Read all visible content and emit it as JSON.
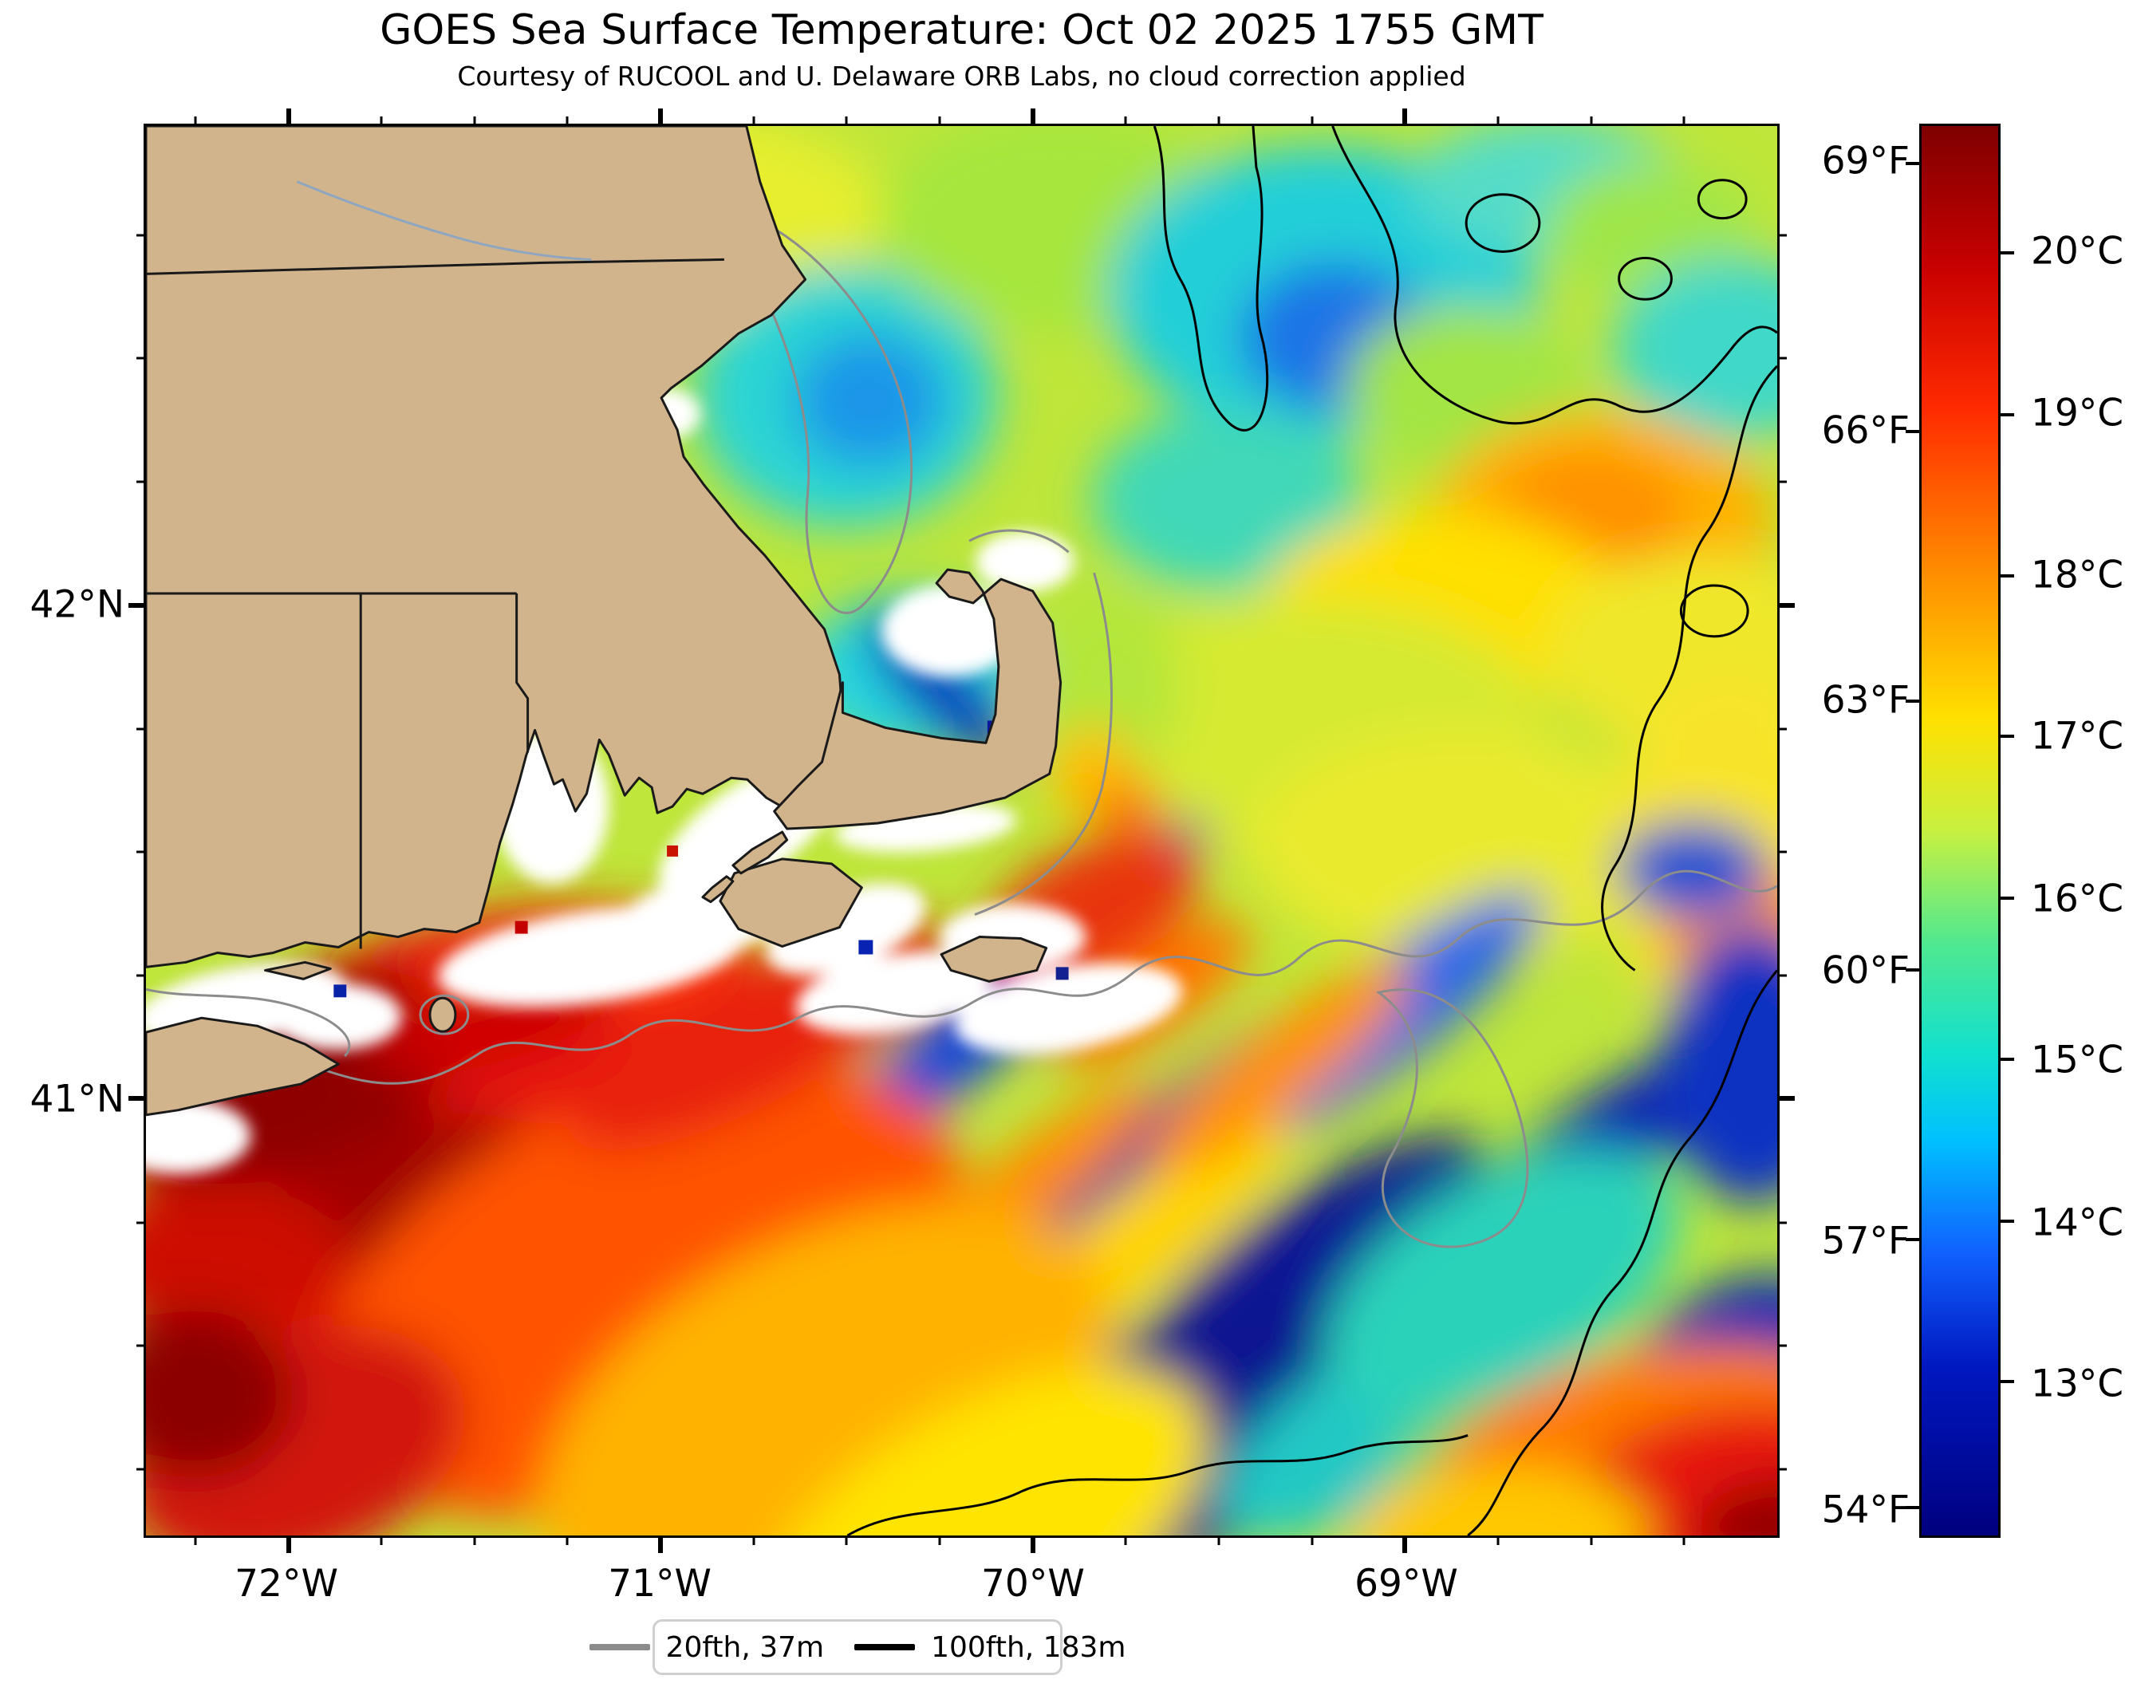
{
  "figure": {
    "title": "GOES Sea Surface Temperature: Oct 02 2025 1755 GMT",
    "subtitle": "Courtesy of RUCOOL and U. Delaware ORB Labs, no cloud correction applied"
  },
  "map": {
    "x_tick_labels": [
      "72°W",
      "71°W",
      "70°W",
      "69°W"
    ],
    "y_tick_labels": [
      "42°N",
      "41°N"
    ]
  },
  "colorbar": {
    "f_tick_labels": [
      "69°F",
      "66°F",
      "63°F",
      "60°F",
      "57°F",
      "54°F"
    ],
    "c_tick_labels": [
      "20°C",
      "19°C",
      "18°C",
      "17°C",
      "16°C",
      "15°C",
      "14°C",
      "13°C"
    ],
    "palette": "jet",
    "top_color": "#7f0000",
    "bottom_color": "#00007f"
  },
  "legend": {
    "items": [
      {
        "label": "20fth, 37m",
        "color": "#8c8c8c"
      },
      {
        "label": "100fth, 183m",
        "color": "#000000"
      }
    ]
  },
  "chart_data": {
    "type": "heatmap",
    "title": "GOES Sea Surface Temperature: Oct 02 2025 1755 GMT",
    "subtitle": "Courtesy of RUCOOL and U. Delaware ORB Labs, no cloud correction applied",
    "x_axis": {
      "ticks_deg_west": [
        72,
        71,
        70,
        69
      ],
      "approx_range_deg_west": [
        72.4,
        68.0
      ],
      "minor_tick_step_deg": 0.25
    },
    "y_axis": {
      "ticks_deg_north": [
        42,
        41
      ],
      "approx_range_deg_north": [
        40.1,
        43.0
      ],
      "minor_tick_step_deg": 0.25
    },
    "colorbar": {
      "fahrenheit_ticks": [
        69,
        66,
        63,
        60,
        57,
        54
      ],
      "celsius_ticks": [
        20,
        19,
        18,
        17,
        16,
        15,
        14,
        13
      ],
      "palette": "jet",
      "orientation": "vertical",
      "approx_range_c": [
        12.0,
        20.8
      ]
    },
    "contour_legend": [
      {
        "label": "20fth, 37m",
        "line_color": "gray"
      },
      {
        "label": "100fth, 183m",
        "line_color": "black"
      }
    ],
    "notable_features": [
      "Land (tan): Massachusetts, Cape Cod, Rhode Island, Connecticut, Long Island tip, Martha's Vineyard, Nantucket",
      "Warm red/dark-red water (19-21C) southwest near Long Island and Block Island Sound",
      "Cold dark-blue SW-NE streaks (12-13C) south and east of Nantucket",
      "Yellow-green water (16-18C) in Gulf of Maine and Georges Bank, orange patch upper right-center",
      "White patches near coast: cloud-masked pixels (no cloud correction applied)",
      "Warm red blob at bottom-right corner"
    ]
  }
}
